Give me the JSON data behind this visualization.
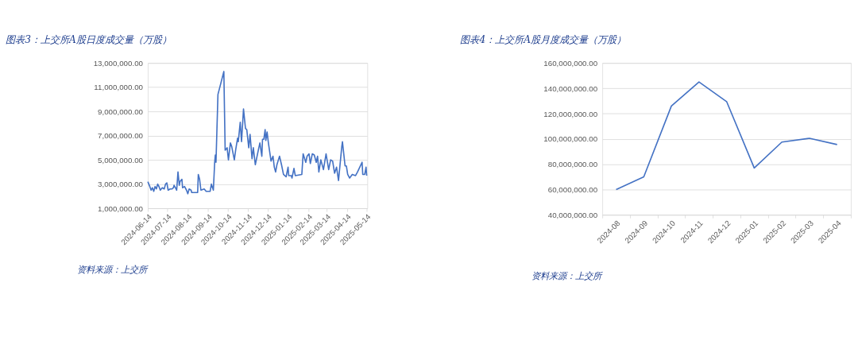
{
  "chart_data": [
    {
      "type": "line",
      "title": "图表3：上交所A股日度成交量（万股）",
      "annotations": [
        "资料来源：上交所"
      ],
      "x": [
        "2024-06-14",
        "2024-06-17",
        "2024-06-19",
        "2024-06-21",
        "2024-06-23",
        "2024-06-25",
        "2024-06-27",
        "2024-06-29",
        "2024-07-01",
        "2024-07-03",
        "2024-07-06",
        "2024-07-09",
        "2024-07-11",
        "2024-07-13",
        "2024-07-15",
        "2024-07-18",
        "2024-07-21",
        "2024-07-23",
        "2024-07-24",
        "2024-07-27",
        "2024-07-28",
        "2024-07-30",
        "2024-08-01",
        "2024-08-02",
        "2024-08-05",
        "2024-08-06",
        "2024-08-09",
        "2024-08-12",
        "2024-08-14",
        "2024-08-16",
        "2024-08-19",
        "2024-08-20",
        "2024-08-27",
        "2024-08-29",
        "2024-08-30",
        "2024-09-01",
        "2024-09-03",
        "2024-09-08",
        "2024-09-11",
        "2024-09-17",
        "2024-09-19",
        "2024-09-22",
        "2024-09-24",
        "2024-09-25",
        "2024-09-26",
        "2024-09-29",
        "2024-10-08",
        "2024-10-10",
        "2024-10-13",
        "2024-10-15",
        "2024-10-18",
        "2024-10-20",
        "2024-10-24",
        "2024-10-26",
        "2024-10-29",
        "2024-10-30",
        "2024-11-02",
        "2024-11-04",
        "2024-11-07",
        "2024-11-10",
        "2024-11-12",
        "2024-11-15",
        "2024-11-17",
        "2024-11-20",
        "2024-11-22",
        "2024-11-25",
        "2024-11-30",
        "2024-12-02",
        "2024-12-05",
        "2024-12-06",
        "2024-12-08",
        "2024-12-10",
        "2024-12-11",
        "2024-12-13",
        "2024-12-15",
        "2024-12-19",
        "2024-12-22",
        "2024-12-24",
        "2024-12-26",
        "2024-12-28",
        "2025-01-01",
        "2025-01-04",
        "2025-01-07",
        "2025-01-11",
        "2025-01-14",
        "2025-01-15",
        "2025-01-19",
        "2025-01-20",
        "2025-01-23",
        "2025-01-25",
        "2025-02-04",
        "2025-02-06",
        "2025-02-10",
        "2025-02-12",
        "2025-02-15",
        "2025-02-17",
        "2025-02-20",
        "2025-02-23",
        "2025-02-26",
        "2025-02-28",
        "2025-03-02",
        "2025-03-05",
        "2025-03-09",
        "2025-03-13",
        "2025-03-17",
        "2025-03-20",
        "2025-03-23",
        "2025-03-26",
        "2025-03-29",
        "2025-04-01",
        "2025-04-06",
        "2025-04-07",
        "2025-04-11",
        "2025-04-13",
        "2025-04-15",
        "2025-04-18",
        "2025-04-22",
        "2025-04-27",
        "2025-04-30",
        "2025-05-07",
        "2025-05-08",
        "2025-05-11",
        "2025-05-13",
        "2025-05-14"
      ],
      "series": [
        {
          "color": "#4472c4",
          "values": [
            3200000,
            2800000,
            2500000,
            2700000,
            2400000,
            2800000,
            2600000,
            3000000,
            2800000,
            2500000,
            2700000,
            2600000,
            3000000,
            3100000,
            2500000,
            2600000,
            2600000,
            2700000,
            2900000,
            2600000,
            2500000,
            4000000,
            2900000,
            3200000,
            3400000,
            2700000,
            2800000,
            2500000,
            2200000,
            2600000,
            2500000,
            2300000,
            2300000,
            2300000,
            3800000,
            3400000,
            2500000,
            2600000,
            2400000,
            2400000,
            3000000,
            2500000,
            4800000,
            5400000,
            4800000,
            10400000,
            12300000,
            5800000,
            6000000,
            5000000,
            6400000,
            6100000,
            5000000,
            5800000,
            6800000,
            6500000,
            8100000,
            6500000,
            9200000,
            7600000,
            7500000,
            6000000,
            7100000,
            5100000,
            6000000,
            4600000,
            5900000,
            6400000,
            5300000,
            6700000,
            6700000,
            7500000,
            6600000,
            7300000,
            6400000,
            4900000,
            5300000,
            4400000,
            4000000,
            4600000,
            5300000,
            4600000,
            3800000,
            3600000,
            4400000,
            3700000,
            3700000,
            3500000,
            4300000,
            3700000,
            3800000,
            5500000,
            4800000,
            5300000,
            5500000,
            4700000,
            5500000,
            5400000,
            4800000,
            5300000,
            4000000,
            5000000,
            4200000,
            5500000,
            4200000,
            5000000,
            4900000,
            3900000,
            4400000,
            3300000,
            6100000,
            6500000,
            4500000,
            4500000,
            3800000,
            3500000,
            3800000,
            3700000,
            4000000,
            4800000,
            3800000,
            3800000,
            4400000,
            3700000
          ]
        }
      ],
      "xlim": [
        "2024-06-14",
        "2025-05-15"
      ],
      "xticks": [
        "2024-06-14",
        "2024-07-14",
        "2024-08-14",
        "2024-09-14",
        "2024-10-14",
        "2024-11-14",
        "2024-12-14",
        "2025-01-14",
        "2025-02-14",
        "2025-03-14",
        "2025-04-14",
        "2025-05-14"
      ],
      "ylim": [
        1000000,
        13000000
      ],
      "yticks": [
        {
          "value": 1000000,
          "label": "1,000,000.00"
        },
        {
          "value": 3000000,
          "label": "3,000,000.00"
        },
        {
          "value": 5000000,
          "label": "5,000,000.00"
        },
        {
          "value": 7000000,
          "label": "7,000,000.00"
        },
        {
          "value": 9000000,
          "label": "9,000,000.00"
        },
        {
          "value": 11000000,
          "label": "11,000,000.00"
        },
        {
          "value": 13000000,
          "label": "13,000,000.00"
        }
      ],
      "grid": "y",
      "marker": "none",
      "line_style": "solid"
    },
    {
      "type": "line",
      "title": "图表4：上交所A股月度成交量（万股）",
      "annotations": [
        "资料来源：上交所"
      ],
      "categories": [
        "2024-08",
        "2024-09",
        "2024-10",
        "2024-11",
        "2024-12",
        "2025-01",
        "2025-02",
        "2025-03",
        "2025-04"
      ],
      "series": [
        {
          "color": "#4472c4",
          "values": [
            60000000,
            70000000,
            126000000,
            145000000,
            129500000,
            77000000,
            97500000,
            100500000,
            95500000
          ]
        }
      ],
      "ylim": [
        40000000,
        160000000
      ],
      "yticks": [
        {
          "value": 40000000,
          "label": "40,000,000.00"
        },
        {
          "value": 60000000,
          "label": "60,000,000.00"
        },
        {
          "value": 80000000,
          "label": "80,000,000.00"
        },
        {
          "value": 100000000,
          "label": "100,000,000.00"
        },
        {
          "value": 120000000,
          "label": "120,000,000.00"
        },
        {
          "value": 140000000,
          "label": "140,000,000.00"
        },
        {
          "value": 160000000,
          "label": "160,000,000.00"
        }
      ],
      "grid": "y",
      "marker": "none",
      "line_style": "solid"
    }
  ]
}
